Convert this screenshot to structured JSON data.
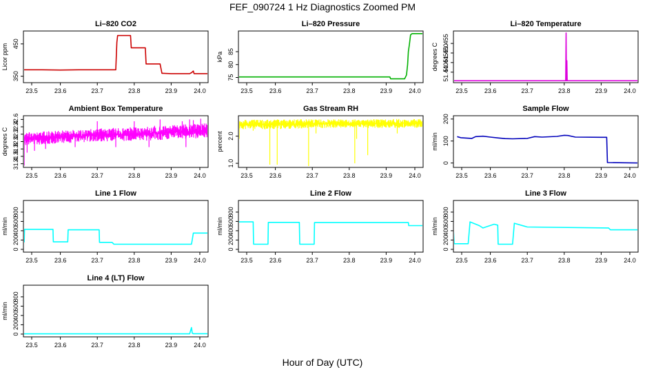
{
  "figure": {
    "title": "FEF_090724  1 Hz Diagnostics Zoomed PM",
    "xlabel": "Hour of Day (UTC)"
  },
  "chart_data": [
    {
      "type": "line",
      "title": "Li–820 CO2",
      "ylabel": "Licor ppm",
      "color": "#cc0000",
      "xlim": [
        23.5,
        24.0
      ],
      "ylim": [
        330,
        490
      ],
      "xticks": [
        "23.5",
        "23.6",
        "23.7",
        "23.8",
        "23.9",
        "24.0"
      ],
      "xtick_values": [
        23.5,
        23.6,
        23.7,
        23.8,
        23.9,
        24.0
      ],
      "yticks": [
        "350",
        "450"
      ],
      "ytick_values": [
        350,
        450
      ],
      "x": [
        23.5,
        23.55,
        23.6,
        23.65,
        23.7,
        23.75,
        23.753,
        23.755,
        23.77,
        23.79,
        23.792,
        23.8,
        23.82,
        23.83,
        23.832,
        23.85,
        23.87,
        23.875,
        23.878,
        23.9,
        23.95,
        23.955,
        23.96,
        23.962,
        23.97,
        24.0
      ],
      "y": [
        370,
        370,
        369,
        370,
        370,
        370,
        455,
        476,
        476,
        476,
        438,
        438,
        438,
        438,
        388,
        388,
        388,
        359,
        359,
        358,
        358,
        361,
        366,
        358,
        358,
        358
      ]
    },
    {
      "type": "line",
      "title": "Li–820 Pressure",
      "ylabel": "kPa",
      "color": "#00b000",
      "xlim": [
        23.5,
        24.0
      ],
      "ylim": [
        73,
        93
      ],
      "xticks": [
        "23.5",
        "23.6",
        "23.7",
        "23.8",
        "23.9",
        "24.0"
      ],
      "xtick_values": [
        23.5,
        23.6,
        23.7,
        23.8,
        23.9,
        24.0
      ],
      "yticks": [
        "75",
        "80",
        "85"
      ],
      "ytick_values": [
        75,
        80,
        85
      ],
      "x": [
        23.5,
        23.7,
        23.9,
        23.91,
        23.912,
        23.95,
        23.955,
        23.958,
        23.96,
        23.963,
        23.966,
        23.97,
        24.0
      ],
      "y": [
        75.2,
        75.2,
        75.2,
        75.2,
        74.5,
        74.5,
        76,
        80,
        85,
        88,
        91.5,
        92,
        92
      ]
    },
    {
      "type": "line",
      "title": "Li–820 Temperature",
      "ylabel": "degrees C",
      "color": "#dd00dd",
      "xlim": [
        23.5,
        24.0
      ],
      "ylim": [
        51.4345,
        51.4615
      ],
      "xticks": [
        "23.5",
        "23.6",
        "23.7",
        "23.8",
        "23.9",
        "24.0"
      ],
      "xtick_values": [
        23.5,
        23.6,
        23.7,
        23.8,
        23.9,
        24.0
      ],
      "yticks": [
        "51.440",
        "51.445",
        "51.450",
        "51.455"
      ],
      "ytick_values": [
        51.44,
        51.445,
        51.45,
        51.455
      ],
      "x": [
        23.5,
        23.8,
        23.804,
        23.805,
        23.806,
        23.807,
        23.808,
        23.809,
        24.0
      ],
      "y": [
        51.4355,
        51.4355,
        51.4355,
        51.4605,
        51.4355,
        51.446,
        51.4355,
        51.4355,
        51.4355
      ]
    },
    {
      "type": "line",
      "title": "Ambient Box Temperature",
      "ylabel": "degrees C",
      "color": "#ff00ff",
      "xlim": [
        23.5,
        24.0
      ],
      "ylim": [
        31.3,
        32.7
      ],
      "xticks": [
        "23.5",
        "23.6",
        "23.7",
        "23.8",
        "23.9",
        "24.0"
      ],
      "xtick_values": [
        23.5,
        23.6,
        23.7,
        23.8,
        23.9,
        24.0
      ],
      "yticks": [
        "31.4",
        "31.6",
        "31.8",
        "32.0",
        "32.2",
        "32.4",
        "32.6"
      ],
      "ytick_values": [
        31.4,
        31.6,
        31.8,
        32.0,
        32.2,
        32.4,
        32.6
      ],
      "band": {
        "x": [
          23.5,
          23.6,
          23.7,
          23.8,
          23.9,
          24.0
        ],
        "low": [
          31.9,
          31.95,
          32.0,
          32.0,
          32.05,
          32.1
        ],
        "high": [
          32.25,
          32.3,
          32.35,
          32.4,
          32.45,
          32.5
        ]
      },
      "spikes": [
        [
          23.502,
          31.35
        ],
        [
          23.51,
          31.7
        ],
        [
          23.53,
          31.75
        ],
        [
          23.56,
          31.8
        ],
        [
          23.64,
          31.85
        ],
        [
          23.7,
          32.55
        ],
        [
          23.75,
          31.85
        ],
        [
          23.8,
          32.55
        ],
        [
          23.84,
          31.85
        ],
        [
          23.87,
          32.6
        ],
        [
          23.93,
          32.55
        ],
        [
          23.94,
          31.85
        ],
        [
          23.95,
          32.6
        ],
        [
          23.96,
          32.58
        ],
        [
          23.98,
          32.62
        ]
      ]
    },
    {
      "type": "line",
      "title": "Gas Stream RH",
      "ylabel": "percent",
      "color": "#ffff00",
      "xlim": [
        23.5,
        24.0
      ],
      "ylim": [
        0.85,
        2.75
      ],
      "xticks": [
        "23.5",
        "23.6",
        "23.7",
        "23.8",
        "23.9",
        "24.0"
      ],
      "xtick_values": [
        23.5,
        23.6,
        23.7,
        23.8,
        23.9,
        24.0
      ],
      "yticks": [
        "1.0",
        "2.0"
      ],
      "ytick_values": [
        1.0,
        2.0
      ],
      "band": {
        "x": [
          23.5,
          23.6,
          23.7,
          23.8,
          23.9,
          24.0
        ],
        "low": [
          2.25,
          2.25,
          2.3,
          2.3,
          2.3,
          2.3
        ],
        "high": [
          2.6,
          2.62,
          2.62,
          2.62,
          2.63,
          2.63
        ]
      },
      "spikes": [
        [
          23.502,
          1.9
        ],
        [
          23.54,
          2.2
        ],
        [
          23.585,
          0.95
        ],
        [
          23.605,
          0.95
        ],
        [
          23.69,
          0.9
        ],
        [
          23.71,
          2.1
        ],
        [
          23.815,
          1.0
        ],
        [
          23.82,
          1.9
        ],
        [
          23.85,
          1.3
        ],
        [
          23.93,
          2.1
        ]
      ]
    },
    {
      "type": "line",
      "title": "Sample Flow",
      "ylabel": "ml/min",
      "color": "#0000bb",
      "xlim": [
        23.5,
        24.0
      ],
      "ylim": [
        -20,
        215
      ],
      "xticks": [
        "23.5",
        "23.6",
        "23.7",
        "23.8",
        "23.9",
        "24.0"
      ],
      "xtick_values": [
        23.5,
        23.6,
        23.7,
        23.8,
        23.9,
        24.0
      ],
      "yticks": [
        "0",
        "100",
        "200"
      ],
      "ytick_values": [
        0,
        100,
        200
      ],
      "x": [
        23.51,
        23.52,
        23.55,
        23.56,
        23.58,
        23.6,
        23.62,
        23.64,
        23.66,
        23.7,
        23.72,
        23.74,
        23.78,
        23.8,
        23.81,
        23.83,
        23.9,
        23.915,
        23.917,
        24.0
      ],
      "y": [
        120,
        115,
        112,
        120,
        122,
        118,
        114,
        111,
        110,
        112,
        120,
        118,
        121,
        126,
        125,
        118,
        117,
        117,
        2,
        0
      ]
    },
    {
      "type": "line",
      "title": "Line 1 Flow",
      "ylabel": "ml/min",
      "color": "#00ffff",
      "xlim": [
        23.5,
        24.0
      ],
      "ylim": [
        -60,
        1050
      ],
      "xticks": [
        "23.5",
        "23.6",
        "23.7",
        "23.8",
        "23.9",
        "24.0"
      ],
      "xtick_values": [
        23.5,
        23.6,
        23.7,
        23.8,
        23.9,
        24.0
      ],
      "yticks": [
        "0",
        "200",
        "400",
        "600",
        "800"
      ],
      "ytick_values": [
        0,
        200,
        400,
        600,
        800
      ],
      "x": [
        23.502,
        23.503,
        23.58,
        23.581,
        23.62,
        23.621,
        23.705,
        23.706,
        23.74,
        23.745,
        23.955,
        23.96,
        24.0
      ],
      "y": [
        150,
        430,
        430,
        160,
        160,
        420,
        420,
        150,
        150,
        110,
        110,
        350,
        350
      ]
    },
    {
      "type": "line",
      "title": "Line 2 Flow",
      "ylabel": "ml/min",
      "color": "#00ffff",
      "xlim": [
        23.5,
        24.0
      ],
      "ylim": [
        -60,
        1050
      ],
      "xticks": [
        "23.5",
        "23.6",
        "23.7",
        "23.8",
        "23.9",
        "24.0"
      ],
      "xtick_values": [
        23.5,
        23.6,
        23.7,
        23.8,
        23.9,
        24.0
      ],
      "yticks": [
        "0",
        "200",
        "400",
        "600",
        "800"
      ],
      "ytick_values": [
        0,
        200,
        400,
        600,
        800
      ],
      "x": [
        23.5,
        23.54,
        23.541,
        23.58,
        23.581,
        23.665,
        23.666,
        23.705,
        23.706,
        23.96,
        23.961,
        24.0
      ],
      "y": [
        590,
        590,
        110,
        110,
        580,
        580,
        110,
        110,
        575,
        575,
        510,
        510
      ]
    },
    {
      "type": "line",
      "title": "Line 3 Flow",
      "ylabel": "ml/min",
      "color": "#00ffff",
      "xlim": [
        23.5,
        24.0
      ],
      "ylim": [
        -60,
        1050
      ],
      "xticks": [
        "23.5",
        "23.6",
        "23.7",
        "23.8",
        "23.9",
        "24.0"
      ],
      "xtick_values": [
        23.5,
        23.6,
        23.7,
        23.8,
        23.9,
        24.0
      ],
      "yticks": [
        "0",
        "200",
        "400",
        "600",
        "800"
      ],
      "ytick_values": [
        0,
        200,
        400,
        600,
        800
      ],
      "x": [
        23.5,
        23.502,
        23.503,
        23.54,
        23.545,
        23.57,
        23.58,
        23.61,
        23.62,
        23.621,
        23.66,
        23.665,
        23.7,
        23.92,
        23.925,
        24.0
      ],
      "y": [
        450,
        120,
        120,
        120,
        590,
        510,
        460,
        540,
        520,
        110,
        110,
        560,
        480,
        460,
        420,
        420
      ]
    },
    {
      "type": "line",
      "title": "Line 4 (LT) Flow",
      "ylabel": "ml/min",
      "color": "#00ffff",
      "xlim": [
        23.5,
        24.0
      ],
      "ylim": [
        -60,
        1050
      ],
      "xticks": [
        "23.5",
        "23.6",
        "23.7",
        "23.8",
        "23.9",
        "24.0"
      ],
      "xtick_values": [
        23.5,
        23.6,
        23.7,
        23.8,
        23.9,
        24.0
      ],
      "yticks": [
        "0",
        "200",
        "400",
        "600",
        "800"
      ],
      "ytick_values": [
        0,
        200,
        400,
        600,
        800
      ],
      "x": [
        23.5,
        23.95,
        23.955,
        23.957,
        23.96,
        24.0
      ],
      "y": [
        5,
        5,
        140,
        20,
        8,
        8
      ]
    }
  ]
}
